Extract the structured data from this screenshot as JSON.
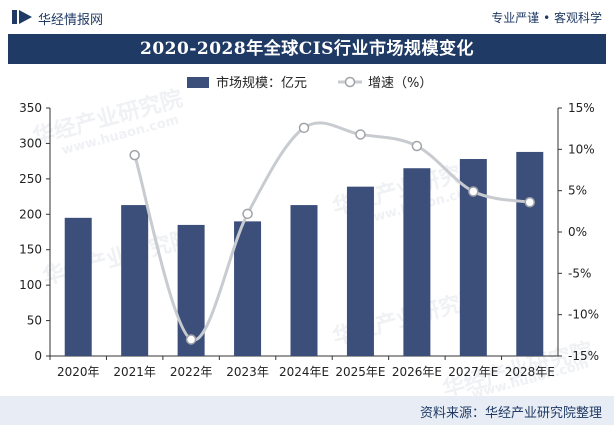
{
  "header": {
    "brand_name": "华经情报网",
    "brand_tagline": "专业严谨 • 客观科学",
    "title": "2020-2028年全球CIS行业市场规模变化"
  },
  "watermark": {
    "text": "华经产业研究院",
    "url": "www.huaon.com"
  },
  "footer": {
    "source": "资料来源：华经产业研究院整理"
  },
  "colors": {
    "bar": "#3b4f7a",
    "line": "#c8cbcf",
    "marker_fill": "#ffffff",
    "title_bg": "#1f3a64",
    "footer_bg": "#e8edf5"
  },
  "chart_data": {
    "type": "bar+line",
    "categories": [
      "2020年",
      "2021年",
      "2022年",
      "2023年",
      "2024年E",
      "2025年E",
      "2026年E",
      "2027年E",
      "2028年E"
    ],
    "series": [
      {
        "name": "市场规模：亿元",
        "type": "bar",
        "axis": "left",
        "values": [
          195,
          213,
          185,
          190,
          213,
          239,
          265,
          278,
          288
        ]
      },
      {
        "name": "增速（%）",
        "type": "line",
        "axis": "right",
        "values": [
          null,
          9.3,
          -13.0,
          2.2,
          12.6,
          11.8,
          10.4,
          4.9,
          3.6
        ]
      }
    ],
    "y_left": {
      "min": 0,
      "max": 350,
      "ticks": [
        "0",
        "50",
        "100",
        "150",
        "200",
        "250",
        "300",
        "350"
      ]
    },
    "y_right": {
      "min": -15,
      "max": 15,
      "ticks": [
        "-15%",
        "-10%",
        "-5%",
        "0%",
        "5%",
        "10%",
        "15%"
      ]
    },
    "legend_position": "top",
    "grid": false
  }
}
